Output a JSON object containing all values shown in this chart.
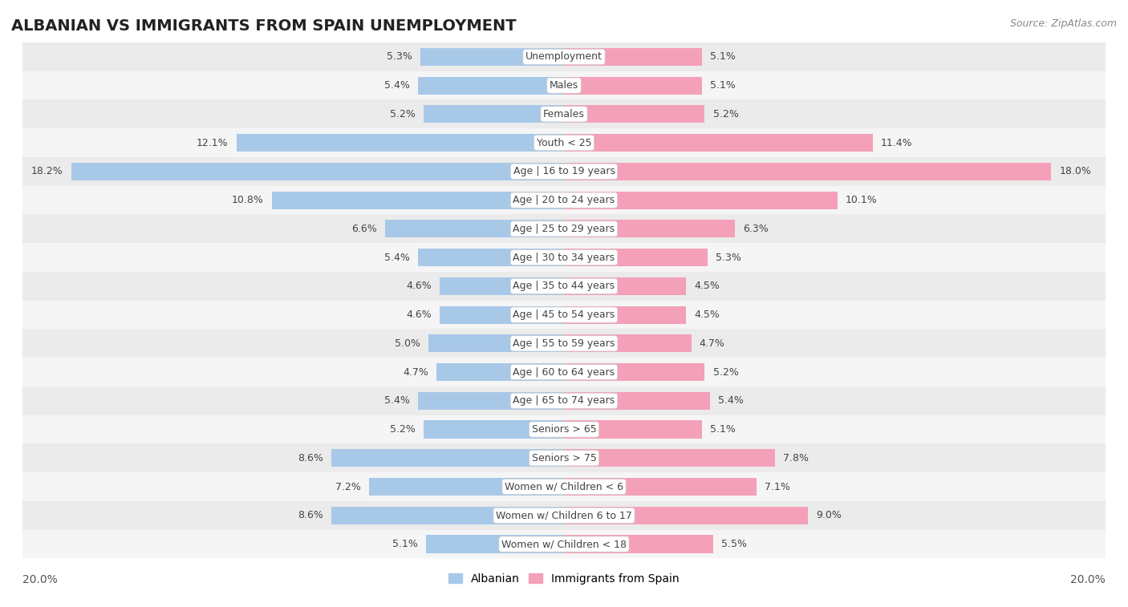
{
  "title": "ALBANIAN VS IMMIGRANTS FROM SPAIN UNEMPLOYMENT",
  "source": "Source: ZipAtlas.com",
  "categories": [
    "Unemployment",
    "Males",
    "Females",
    "Youth < 25",
    "Age | 16 to 19 years",
    "Age | 20 to 24 years",
    "Age | 25 to 29 years",
    "Age | 30 to 34 years",
    "Age | 35 to 44 years",
    "Age | 45 to 54 years",
    "Age | 55 to 59 years",
    "Age | 60 to 64 years",
    "Age | 65 to 74 years",
    "Seniors > 65",
    "Seniors > 75",
    "Women w/ Children < 6",
    "Women w/ Children 6 to 17",
    "Women w/ Children < 18"
  ],
  "albanian": [
    5.3,
    5.4,
    5.2,
    12.1,
    18.2,
    10.8,
    6.6,
    5.4,
    4.6,
    4.6,
    5.0,
    4.7,
    5.4,
    5.2,
    8.6,
    7.2,
    8.6,
    5.1
  ],
  "spain": [
    5.1,
    5.1,
    5.2,
    11.4,
    18.0,
    10.1,
    6.3,
    5.3,
    4.5,
    4.5,
    4.7,
    5.2,
    5.4,
    5.1,
    7.8,
    7.1,
    9.0,
    5.5
  ],
  "albanian_color": "#a8c8e8",
  "spain_color": "#f4a0b8",
  "row_bg_odd": "#ebebeb",
  "row_bg_even": "#f5f5f5",
  "xlim": 20.0,
  "legend_albanian": "Albanian",
  "legend_spain": "Immigrants from Spain",
  "title_fontsize": 14,
  "source_fontsize": 9,
  "label_fontsize": 9,
  "value_fontsize": 9,
  "bar_height": 0.62
}
